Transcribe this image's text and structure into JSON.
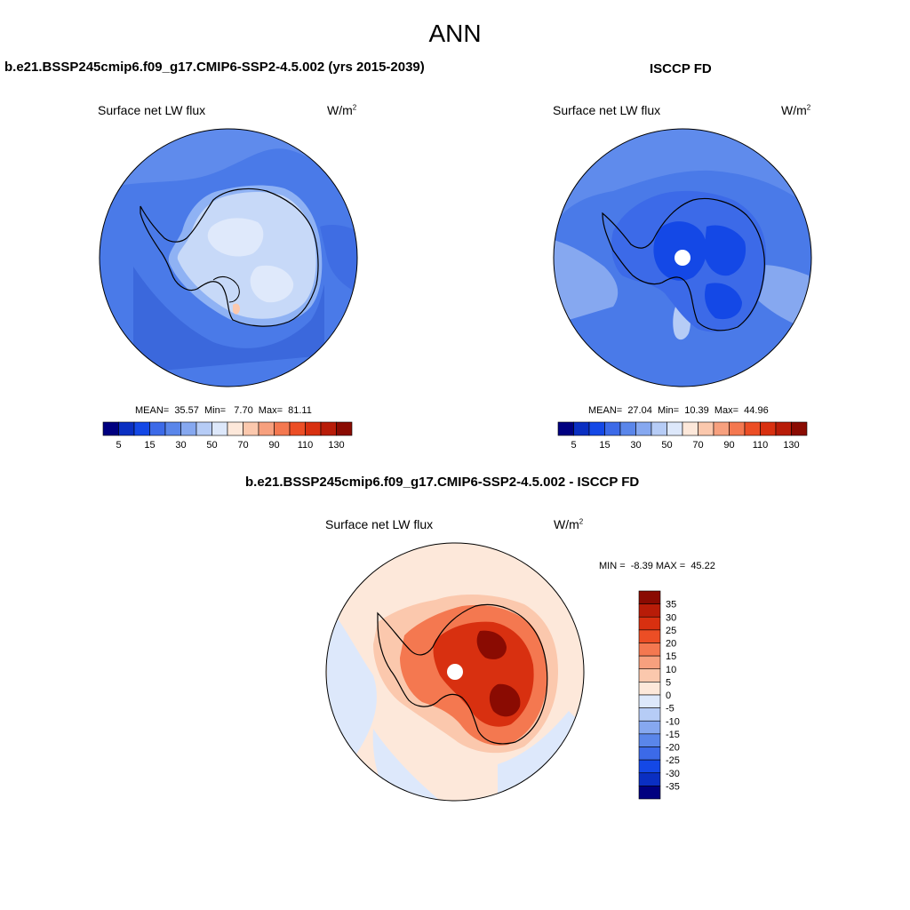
{
  "main_title": "ANN",
  "panels": [
    {
      "title": "b.e21.BSSP245cmip6.f09_g17.CMIP6-SSP2-4.5.002 (yrs 2015-2039)",
      "variable": "Surface net LW flux",
      "units": "W/m",
      "units_sup": "2",
      "stats": "MEAN=  35.57  Min=   7.70  Max=  81.11"
    },
    {
      "title": "ISCCP FD",
      "variable": "Surface net LW flux",
      "units": "W/m",
      "units_sup": "2",
      "stats": "MEAN=  27.04  Min=  10.39  Max=  44.96"
    },
    {
      "title": "b.e21.BSSP245cmip6.f09_g17.CMIP6-SSP2-4.5.002 - ISCCP FD",
      "variable": "Surface net LW flux",
      "units": "W/m",
      "units_sup": "2",
      "stats": "MIN =  -8.39 MAX =  45.22"
    }
  ],
  "chart_data": [
    {
      "type": "heatmap",
      "projection": "south-polar-stereographic",
      "title": "b.e21.BSSP245cmip6.f09_g17.CMIP6-SSP2-4.5.002 (yrs 2015-2039)",
      "variable": "Surface net LW flux",
      "units": "W/m2",
      "mean": 35.57,
      "min": 7.7,
      "max": 81.11,
      "colorbar": {
        "orientation": "horizontal",
        "tick_labels": [
          "5",
          "15",
          "30",
          "50",
          "70",
          "90",
          "110",
          "130"
        ],
        "colors": [
          "#000080",
          "#0a2fc2",
          "#1448e6",
          "#3c6ae8",
          "#5a86ea",
          "#86a8f0",
          "#b6ccf6",
          "#dde8fb",
          "#fde8da",
          "#fbc8ad",
          "#f7a07e",
          "#f47850",
          "#ec4e25",
          "#d83010",
          "#b81c08",
          "#8a0b02"
        ]
      }
    },
    {
      "type": "heatmap",
      "projection": "south-polar-stereographic",
      "title": "ISCCP FD",
      "variable": "Surface net LW flux",
      "units": "W/m2",
      "mean": 27.04,
      "min": 10.39,
      "max": 44.96,
      "colorbar": {
        "orientation": "horizontal",
        "tick_labels": [
          "5",
          "15",
          "30",
          "50",
          "70",
          "90",
          "110",
          "130"
        ],
        "colors": [
          "#000080",
          "#0a2fc2",
          "#1448e6",
          "#3c6ae8",
          "#5a86ea",
          "#86a8f0",
          "#b6ccf6",
          "#dde8fb",
          "#fde8da",
          "#fbc8ad",
          "#f7a07e",
          "#f47850",
          "#ec4e25",
          "#d83010",
          "#b81c08",
          "#8a0b02"
        ]
      }
    },
    {
      "type": "heatmap",
      "projection": "south-polar-stereographic",
      "title": "b.e21.BSSP245cmip6.f09_g17.CMIP6-SSP2-4.5.002 - ISCCP FD",
      "variable": "Surface net LW flux",
      "units": "W/m2",
      "min": -8.39,
      "max": 45.22,
      "colorbar": {
        "orientation": "vertical",
        "tick_labels": [
          "35",
          "30",
          "25",
          "20",
          "15",
          "10",
          "5",
          "0",
          "-5",
          "-10",
          "-15",
          "-20",
          "-25",
          "-30",
          "-35"
        ],
        "colors": [
          "#8a0b02",
          "#b81c08",
          "#d83010",
          "#ec4e25",
          "#f47850",
          "#f7a07e",
          "#fbc8ad",
          "#fde8da",
          "#dde8fb",
          "#b6ccf6",
          "#86a8f0",
          "#5a86ea",
          "#3c6ae8",
          "#1448e6",
          "#0a2fc2",
          "#000080"
        ]
      }
    }
  ]
}
